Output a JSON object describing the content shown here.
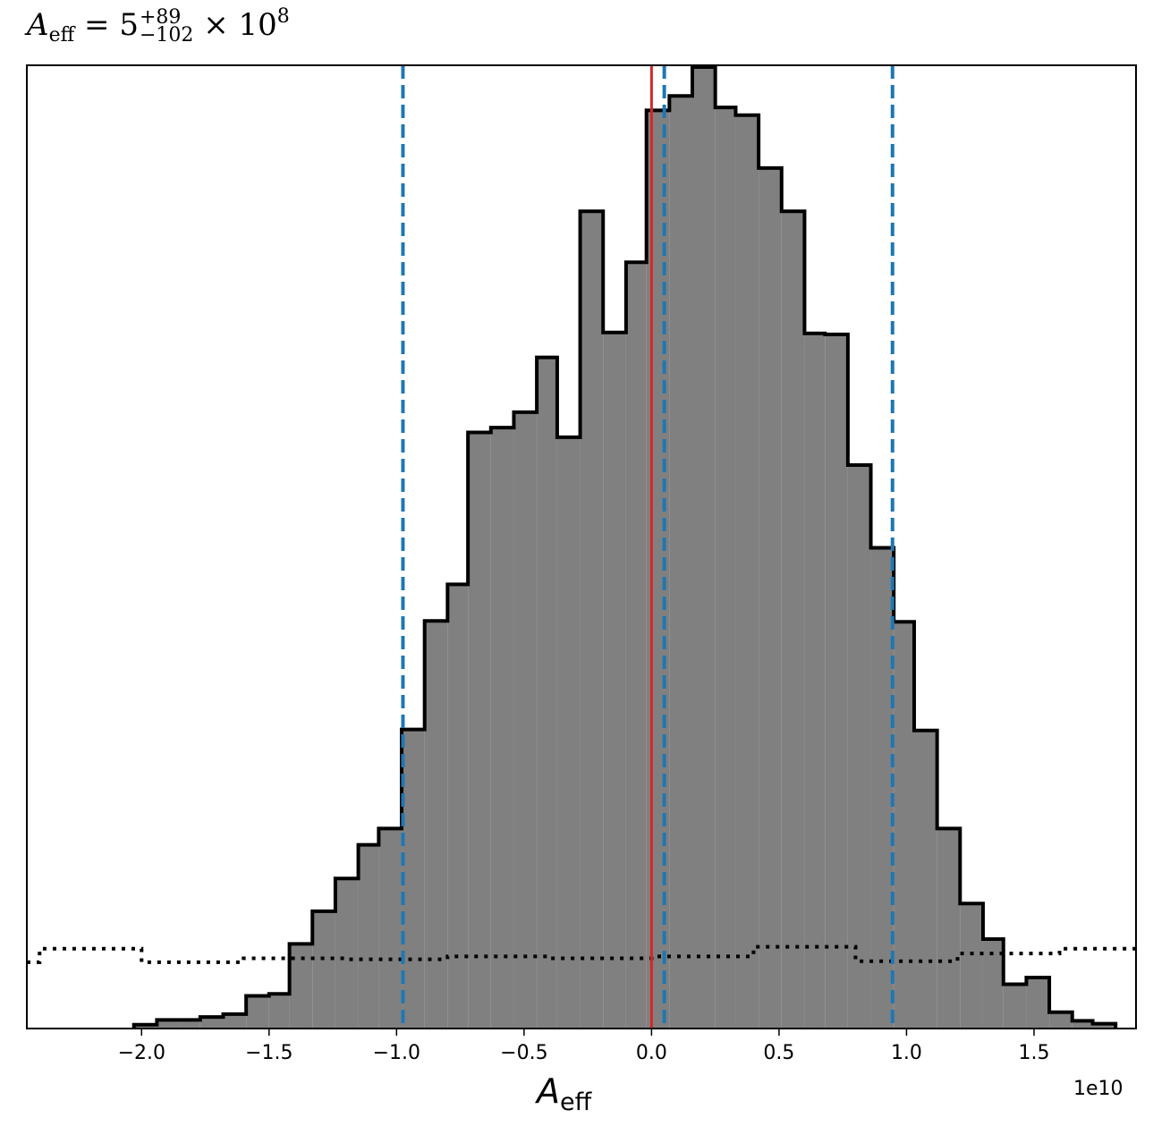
{
  "chart_data": {
    "type": "histogram",
    "title": {
      "symbol": "A",
      "symbol_subscript": "eff",
      "equals": "= 5",
      "upper_err": "+89",
      "lower_err": "−102",
      "multiplier": "× 10",
      "exponent": "8"
    },
    "xlabel": {
      "symbol": "A",
      "subscript": "eff"
    },
    "x_offset_label": "1e10",
    "x_unit_scale": 10000000000,
    "xlim": [
      -2.45,
      1.9
    ],
    "ylim": [
      0,
      1.0
    ],
    "x_ticks": [
      -2.0,
      -1.5,
      -1.0,
      -0.5,
      0.0,
      0.5,
      1.0,
      1.5
    ],
    "x_tick_labels": [
      "−2.0",
      "−1.5",
      "−1.0",
      "−0.5",
      "0.0",
      "0.5",
      "1.0",
      "1.5"
    ],
    "y_ticks_visible": false,
    "histogram": {
      "bin_edges": [
        -2.03,
        -1.94,
        -1.85,
        -1.77,
        -1.68,
        -1.59,
        -1.5,
        -1.42,
        -1.33,
        -1.24,
        -1.15,
        -1.07,
        -0.98,
        -0.89,
        -0.8,
        -0.72,
        -0.63,
        -0.54,
        -0.45,
        -0.37,
        -0.28,
        -0.19,
        -0.1,
        -0.02,
        0.07,
        0.16,
        0.25,
        0.33,
        0.42,
        0.51,
        0.6,
        0.68,
        0.77,
        0.86,
        0.95,
        1.03,
        1.12,
        1.21,
        1.3,
        1.38,
        1.47,
        1.56,
        1.65,
        1.73,
        1.82
      ],
      "densities": [
        0.004,
        0.009,
        0.009,
        0.012,
        0.015,
        0.034,
        0.036,
        0.088,
        0.122,
        0.156,
        0.191,
        0.208,
        0.311,
        0.424,
        0.462,
        0.62,
        0.625,
        0.641,
        0.698,
        0.615,
        0.85,
        0.724,
        0.797,
        0.955,
        0.97,
        1.0,
        0.958,
        0.95,
        0.895,
        0.85,
        0.723,
        0.722,
        0.586,
        0.5,
        0.423,
        0.31,
        0.208,
        0.13,
        0.093,
        0.046,
        0.053,
        0.017,
        0.008,
        0.005
      ],
      "fill_color": "#808080",
      "edge_color": "#000000"
    },
    "prior_dotted": {
      "bin_edges": [
        -2.45,
        -2.4,
        -2.0,
        -1.6,
        -1.2,
        -0.8,
        -0.4,
        0.0,
        0.4,
        0.8,
        1.2,
        1.6,
        1.9
      ],
      "densities": [
        0.069,
        0.083,
        0.069,
        0.073,
        0.072,
        0.075,
        0.073,
        0.075,
        0.085,
        0.07,
        0.078,
        0.083
      ]
    },
    "vlines": [
      {
        "x": -0.975,
        "style": "dashed",
        "color": "#1f77b4"
      },
      {
        "x": 0.05,
        "style": "dashed",
        "color": "#1f77b4"
      },
      {
        "x": 0.945,
        "style": "dashed",
        "color": "#1f77b4"
      },
      {
        "x": 0.0,
        "style": "solid",
        "color": "#d62728"
      }
    ],
    "grid": false,
    "legend": "none"
  }
}
